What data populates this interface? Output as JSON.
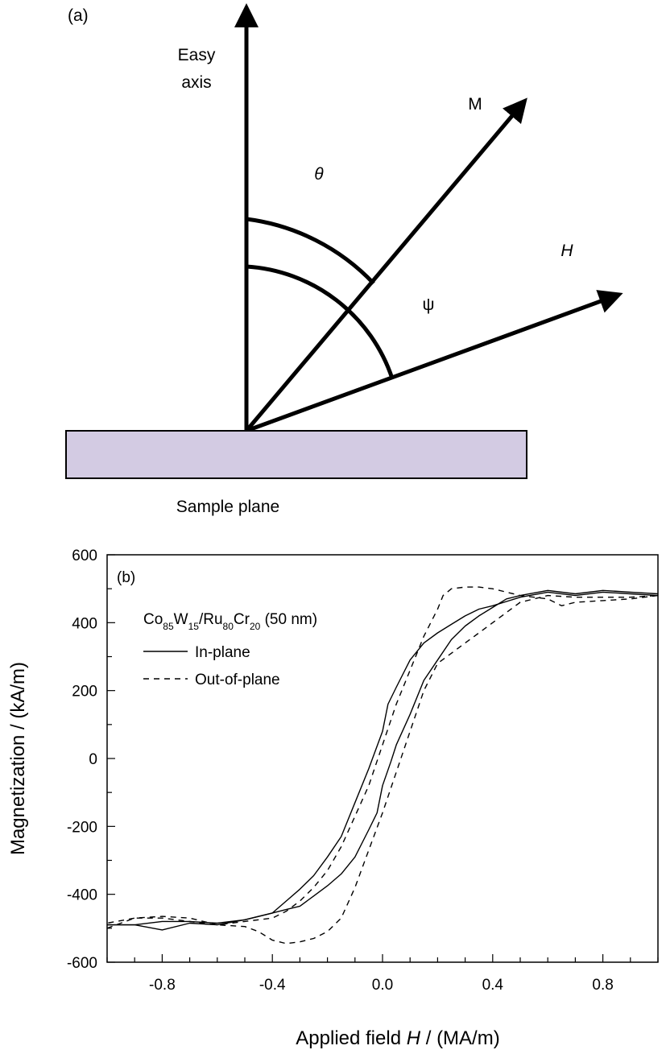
{
  "diagram": {
    "panel_label": "(a)",
    "easy_axis_line1": "Easy",
    "easy_axis_line2": "axis",
    "m_label": "M",
    "h_label": "H",
    "theta_label": "θ",
    "psi_label": "ψ",
    "sample_plane_label": "Sample plane",
    "sample_fill": "#d3cbe3",
    "theta_deg": 40,
    "psi_deg": 68
  },
  "chart_data": {
    "type": "line",
    "panel_label": "(b)",
    "legend_title_parts": [
      {
        "t": "Co",
        "sub": false
      },
      {
        "t": "85",
        "sub": true
      },
      {
        "t": "W",
        "sub": false
      },
      {
        "t": "15",
        "sub": true
      },
      {
        "t": "/Ru",
        "sub": false
      },
      {
        "t": "80",
        "sub": true
      },
      {
        "t": "Cr",
        "sub": false
      },
      {
        "t": "20",
        "sub": true
      },
      {
        "t": " (50 nm)",
        "sub": false
      }
    ],
    "xlabel_parts": [
      {
        "t": "Applied field ",
        "italic": false
      },
      {
        "t": "H",
        "italic": true
      },
      {
        "t": " / (MA/m)",
        "italic": false
      }
    ],
    "ylabel": "Magnetization / (kA/m)",
    "xlim": [
      -1.0,
      1.0
    ],
    "ylim": [
      -600,
      600
    ],
    "xticks": [
      -0.8,
      -0.4,
      0.0,
      0.4,
      0.8
    ],
    "xtick_labels": [
      "-0.8",
      "-0.4",
      "0.0",
      "0.4",
      "0.8"
    ],
    "yticks": [
      -600,
      -400,
      -200,
      0,
      200,
      400,
      600
    ],
    "ytick_labels": [
      "-600",
      "-400",
      "-200",
      "0",
      "200",
      "400",
      "600"
    ],
    "grid": false,
    "legend_position": "top-left",
    "series": [
      {
        "name": "In-plane",
        "style": "solid",
        "color": "#000000",
        "branches": [
          {
            "x": [
              -1.0,
              -0.9,
              -0.8,
              -0.7,
              -0.6,
              -0.5,
              -0.4,
              -0.35,
              -0.3,
              -0.25,
              -0.2,
              -0.15,
              -0.1,
              -0.05,
              0.0,
              0.02,
              0.05,
              0.1,
              0.15,
              0.2,
              0.25,
              0.3,
              0.35,
              0.4,
              0.5,
              0.6,
              0.7,
              0.8,
              0.9,
              1.0
            ],
            "y": [
              -490,
              -490,
              -505,
              -485,
              -490,
              -475,
              -455,
              -420,
              -385,
              -345,
              -290,
              -230,
              -130,
              -30,
              80,
              160,
              210,
              290,
              340,
              370,
              395,
              420,
              440,
              450,
              475,
              490,
              480,
              490,
              485,
              480
            ]
          },
          {
            "x": [
              1.0,
              0.9,
              0.8,
              0.7,
              0.6,
              0.5,
              0.45,
              0.4,
              0.35,
              0.3,
              0.25,
              0.2,
              0.15,
              0.1,
              0.05,
              0.03,
              0.0,
              -0.02,
              -0.05,
              -0.1,
              -0.15,
              -0.2,
              -0.25,
              -0.3,
              -0.35,
              -0.4,
              -0.5,
              -0.6,
              -0.7,
              -0.8,
              -0.9,
              -1.0
            ],
            "y": [
              485,
              490,
              495,
              485,
              495,
              480,
              470,
              445,
              420,
              390,
              350,
              290,
              230,
              130,
              40,
              -10,
              -80,
              -160,
              -210,
              -290,
              -340,
              -375,
              -405,
              -435,
              -445,
              -455,
              -475,
              -485,
              -480,
              -480,
              -490,
              -490
            ]
          }
        ]
      },
      {
        "name": "Out-of-plane",
        "style": "dashed",
        "color": "#000000",
        "branches": [
          {
            "x": [
              -1.0,
              -0.9,
              -0.8,
              -0.7,
              -0.6,
              -0.5,
              -0.45,
              -0.4,
              -0.35,
              -0.3,
              -0.25,
              -0.2,
              -0.15,
              -0.1,
              -0.05,
              0.0,
              0.05,
              0.1,
              0.15,
              0.2,
              0.25,
              0.3,
              0.35,
              0.4,
              0.5,
              0.6,
              0.7,
              0.8,
              0.9,
              1.0
            ],
            "y": [
              -500,
              -470,
              -470,
              -480,
              -490,
              -495,
              -510,
              -535,
              -545,
              -540,
              -530,
              -510,
              -470,
              -380,
              -270,
              -160,
              -40,
              80,
              200,
              280,
              310,
              340,
              370,
              400,
              460,
              480,
              475,
              475,
              475,
              480
            ]
          },
          {
            "x": [
              1.0,
              0.9,
              0.8,
              0.7,
              0.65,
              0.6,
              0.5,
              0.4,
              0.35,
              0.3,
              0.25,
              0.22,
              0.2,
              0.15,
              0.1,
              0.05,
              0.0,
              -0.05,
              -0.1,
              -0.15,
              -0.2,
              -0.25,
              -0.3,
              -0.35,
              -0.4,
              -0.5,
              -0.6,
              -0.7,
              -0.8,
              -0.9,
              -1.0
            ],
            "y": [
              480,
              470,
              465,
              460,
              450,
              470,
              480,
              500,
              505,
              505,
              500,
              480,
              440,
              360,
              260,
              160,
              40,
              -80,
              -170,
              -260,
              -330,
              -380,
              -420,
              -450,
              -470,
              -480,
              -490,
              -470,
              -465,
              -470,
              -485
            ]
          }
        ]
      }
    ]
  }
}
